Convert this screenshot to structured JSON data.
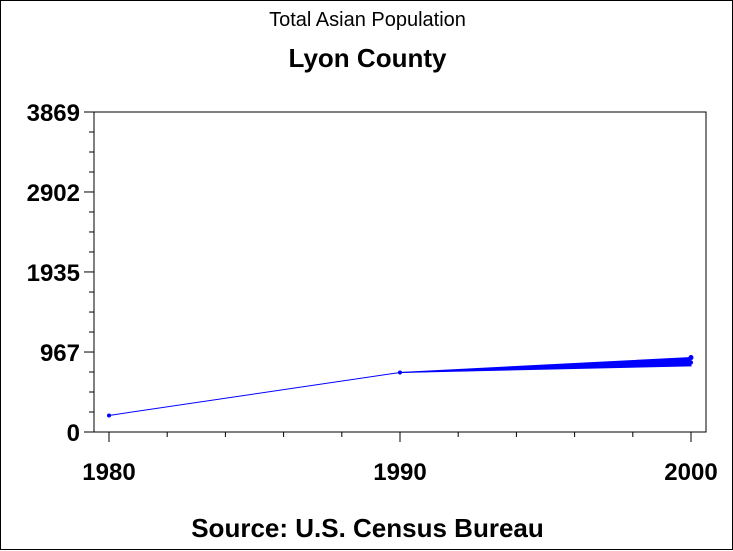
{
  "chart_data": {
    "type": "line",
    "title": "Total Asian Population",
    "subtitle": "Lyon County",
    "footnote": "Source: U.S. Census Bureau",
    "xlabel": "",
    "ylabel": "",
    "x": [
      1980,
      1990,
      2000
    ],
    "series": [
      {
        "values": [
          200,
          720,
          840
        ],
        "color": "#0000ff"
      }
    ],
    "final_range": [
      800,
      900
    ],
    "xlim": [
      1980,
      2000
    ],
    "ylim": [
      0,
      3869
    ],
    "x_ticks": [
      "1980",
      "1990",
      "2000"
    ],
    "y_ticks": [
      {
        "value": 0,
        "label": "0"
      },
      {
        "value": 967,
        "label": "967"
      },
      {
        "value": 1935,
        "label": "1935"
      },
      {
        "value": 2902,
        "label": "2902"
      },
      {
        "value": 3869,
        "label": "3869"
      }
    ],
    "grid": false,
    "legend": "none"
  }
}
